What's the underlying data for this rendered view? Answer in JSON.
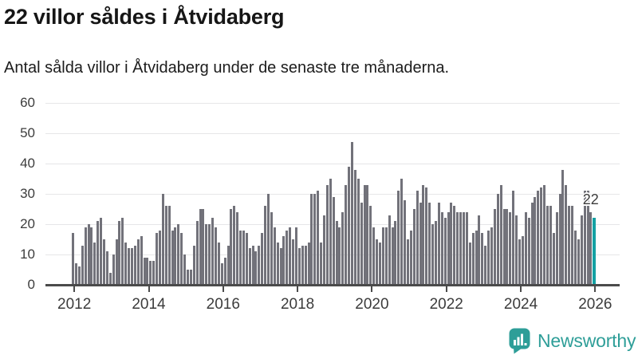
{
  "header": {
    "title": "22 villor såldes i Åtvidaberg",
    "subtitle": "Antal sålda villor i Åtvidaberg under de senaste tre månaderna."
  },
  "chart_data": {
    "type": "bar",
    "title": "22 villor såldes i Åtvidaberg",
    "subtitle": "Antal sålda villor i Åtvidaberg under de senaste tre månaderna.",
    "frequency": "monthly",
    "x_start": "2012-01",
    "x_end": "2026-01",
    "values": [
      17,
      7,
      6,
      13,
      19,
      20,
      19,
      14,
      21,
      22,
      15,
      11,
      4,
      10,
      15,
      21,
      22,
      14,
      12,
      12,
      13,
      15,
      16,
      9,
      9,
      8,
      8,
      17,
      18,
      30,
      26,
      26,
      18,
      19,
      20,
      17,
      10,
      5,
      5,
      13,
      21,
      25,
      25,
      20,
      20,
      22,
      19,
      14,
      7,
      9,
      13,
      25,
      26,
      24,
      18,
      18,
      17,
      12,
      13,
      11,
      13,
      17,
      26,
      30,
      24,
      19,
      14,
      12,
      16,
      18,
      19,
      15,
      19,
      12,
      13,
      13,
      14,
      30,
      30,
      31,
      14,
      23,
      33,
      35,
      29,
      21,
      19,
      24,
      33,
      39,
      47,
      38,
      35,
      27,
      33,
      33,
      26,
      19,
      15,
      14,
      19,
      19,
      23,
      19,
      21,
      31,
      35,
      28,
      15,
      18,
      25,
      31,
      27,
      33,
      32,
      27,
      20,
      21,
      27,
      24,
      22,
      24,
      27,
      26,
      24,
      24,
      24,
      24,
      14,
      17,
      18,
      23,
      17,
      13,
      18,
      19,
      25,
      30,
      33,
      25,
      25,
      24,
      31,
      23,
      15,
      16,
      24,
      22,
      27,
      29,
      31,
      32,
      33,
      26,
      26,
      17,
      24,
      30,
      38,
      33,
      26,
      26,
      18,
      15,
      23,
      31,
      31,
      24,
      22
    ],
    "highlight": {
      "index": 168,
      "value": 22,
      "label": "22"
    },
    "ylim": [
      0,
      60
    ],
    "yticks": [
      0,
      10,
      20,
      30,
      40,
      50,
      60
    ],
    "xtick_labels": [
      "2012",
      "2014",
      "2016",
      "2018",
      "2020",
      "2022",
      "2024",
      "2026"
    ],
    "grid": true,
    "legend": "none",
    "colors": {
      "bar": "#72727a",
      "highlight": "#14a1a3",
      "gridline": "#e6e6e8",
      "axis": "#4b4b4b",
      "tick_label": "#3c3c3c"
    }
  },
  "footer": {
    "brand": "Newsworthy",
    "icon": "newsworthy-speech-bubble-bar-chart-icon",
    "brand_color": "#2e9e98"
  }
}
